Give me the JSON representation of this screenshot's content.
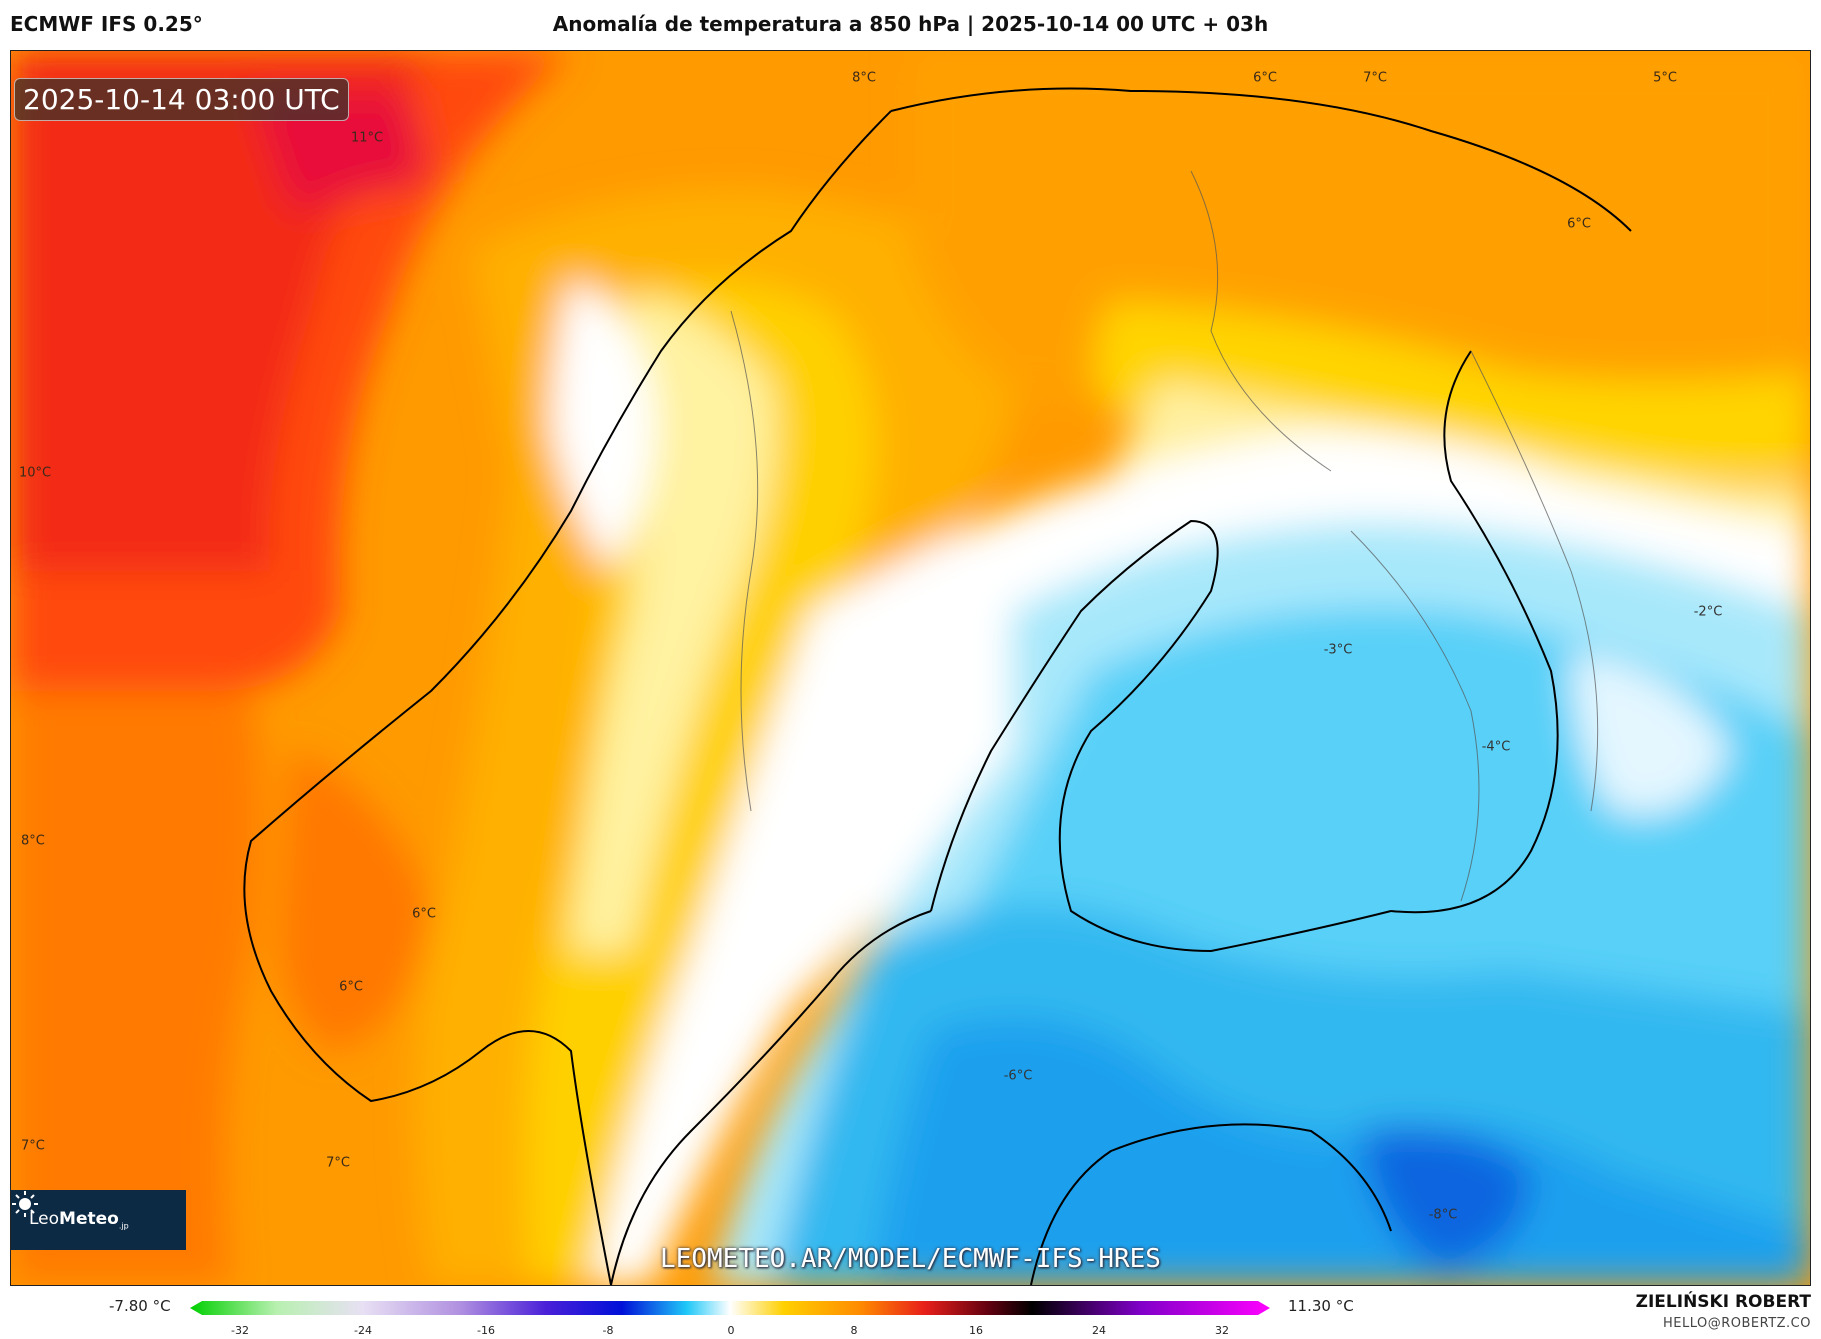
{
  "header": {
    "model": "ECMWF IFS 0.25°",
    "title": "Anomalía de temperatura a 850 hPa | 2025-10-14 00 UTC + 03h"
  },
  "map": {
    "valid_time": "2025-10-14 03:00 UTC",
    "watermark": "LEOMETEO.AR/MODEL/ECMWF-IFS-HRES",
    "logo": {
      "name_light": "Leo",
      "name_bold": "Meteo",
      "suffix": ".jp"
    },
    "labels": [
      {
        "id": "a",
        "text": "8°C"
      },
      {
        "id": "b",
        "text": "11°C"
      },
      {
        "id": "c",
        "text": "6°C"
      },
      {
        "id": "d",
        "text": "7°C"
      },
      {
        "id": "e",
        "text": "5°C"
      },
      {
        "id": "f",
        "text": "6°C"
      },
      {
        "id": "g",
        "text": "10°C"
      },
      {
        "id": "h",
        "text": "-2°C"
      },
      {
        "id": "i",
        "text": "-3°C"
      },
      {
        "id": "j",
        "text": "-4°C"
      },
      {
        "id": "k",
        "text": "8°C"
      },
      {
        "id": "l",
        "text": "6°C"
      },
      {
        "id": "m",
        "text": "6°C"
      },
      {
        "id": "n",
        "text": "-6°C"
      },
      {
        "id": "o",
        "text": "7°C"
      },
      {
        "id": "p",
        "text": "7°C"
      },
      {
        "id": "q",
        "text": "-8°C"
      }
    ]
  },
  "colorbar": {
    "min_label": "-7.80 °C",
    "max_label": "11.30 °C",
    "ticks": [
      "-32",
      "-24",
      "-16",
      "-8",
      "0",
      "8",
      "16",
      "24",
      "32"
    ],
    "colors": {
      "green": "#00d000",
      "lavender": "#c8b4e8",
      "purple": "#7a3ad8",
      "blue": "#0010d8",
      "cyan": "#20c8f8",
      "white": "#ffffff",
      "yellow": "#ffd000",
      "orange": "#ff8c00",
      "red": "#e8201a",
      "darkred": "#600010",
      "black": "#000000",
      "violet": "#8000c8",
      "magenta": "#ff00ff"
    }
  },
  "footer": {
    "author": "ZIELIŃSKI ROBERT",
    "email": "HELLO@ROBERTZ.CO"
  }
}
